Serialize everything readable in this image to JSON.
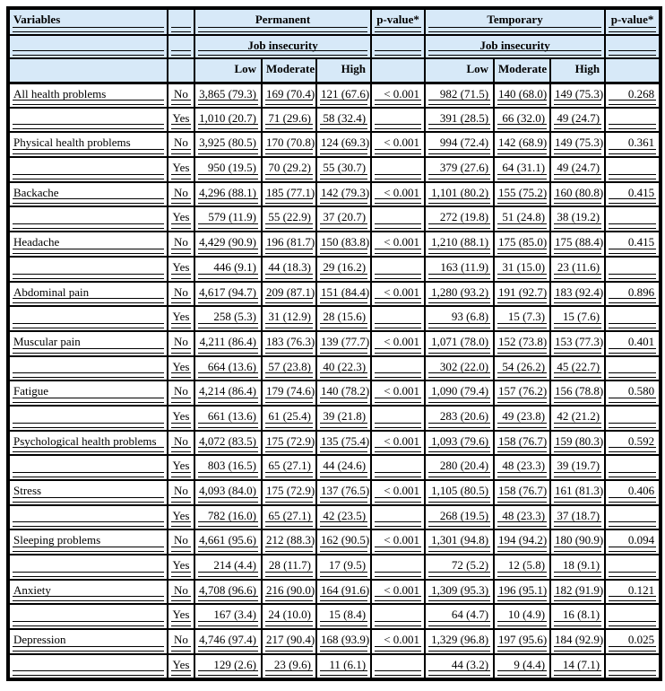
{
  "colors": {
    "header_bg": "#d7e9f8",
    "border": "#000000",
    "page_bg": "#ffffff"
  },
  "header": {
    "variables": "Variables",
    "permanent": "Permanent",
    "temporary": "Temporary",
    "p_value": "p-value*",
    "job_insecurity": "Job insecurity",
    "low": "Low",
    "moderate": "Moderate",
    "high": "High"
  },
  "table": {
    "column_groups": [
      "Variables",
      "",
      "Permanent Job insecurity: Low/Moderate/High",
      "p-value*",
      "Temporary Job insecurity: Low/Moderate/High",
      "p-value*"
    ],
    "rows": [
      {
        "variable": "All health problems",
        "answer": "No",
        "cells": [
          "3,865 (79.3)",
          "169 (70.4)",
          "121 (67.6)",
          "< 0.001",
          "982 (71.5)",
          "140 (68.0)",
          "149 (75.3)",
          "0.268"
        ]
      },
      {
        "variable": "",
        "answer": "Yes",
        "cells": [
          "1,010 (20.7)",
          "71 (29.6)",
          "58 (32.4)",
          "",
          "391 (28.5)",
          "66 (32.0)",
          "49 (24.7)",
          ""
        ]
      },
      {
        "variable": "Physical health problems",
        "answer": "No",
        "cells": [
          "3,925 (80.5)",
          "170 (70.8)",
          "124 (69.3)",
          "< 0.001",
          "994 (72.4)",
          "142 (68.9)",
          "149 (75.3)",
          "0.361"
        ]
      },
      {
        "variable": "",
        "answer": "Yes",
        "cells": [
          "950 (19.5)",
          "70 (29.2)",
          "55 (30.7)",
          "",
          "379 (27.6)",
          "64 (31.1)",
          "49 (24.7)",
          ""
        ]
      },
      {
        "variable": "Backache",
        "answer": "No",
        "cells": [
          "4,296 (88.1)",
          "185 (77.1)",
          "142 (79.3)",
          "< 0.001",
          "1,101 (80.2)",
          "155 (75.2)",
          "160 (80.8)",
          "0.415"
        ]
      },
      {
        "variable": "",
        "answer": "Yes",
        "cells": [
          "579 (11.9)",
          "55 (22.9)",
          "37 (20.7)",
          "",
          "272 (19.8)",
          "51 (24.8)",
          "38 (19.2)",
          ""
        ]
      },
      {
        "variable": "Headache",
        "answer": "No",
        "cells": [
          "4,429 (90.9)",
          "196 (81.7)",
          "150 (83.8)",
          "< 0.001",
          "1,210 (88.1)",
          "175 (85.0)",
          "175 (88.4)",
          "0.415"
        ]
      },
      {
        "variable": "",
        "answer": "Yes",
        "cells": [
          "446 (9.1)",
          "44 (18.3)",
          "29 (16.2)",
          "",
          "163 (11.9)",
          "31 (15.0)",
          "23 (11.6)",
          ""
        ]
      },
      {
        "variable": "Abdominal pain",
        "answer": "No",
        "cells": [
          "4,617 (94.7)",
          "209 (87.1)",
          "151 (84.4)",
          "< 0.001",
          "1,280 (93.2)",
          "191 (92.7)",
          "183 (92.4)",
          "0.896"
        ]
      },
      {
        "variable": "",
        "answer": "Yes",
        "cells": [
          "258 (5.3)",
          "31 (12.9)",
          "28 (15.6)",
          "",
          "93 (6.8)",
          "15 (7.3)",
          "15 (7.6)",
          ""
        ]
      },
      {
        "variable": "Muscular pain",
        "answer": "No",
        "cells": [
          "4,211 (86.4)",
          "183 (76.3)",
          "139 (77.7)",
          "< 0.001",
          "1,071 (78.0)",
          "152 (73.8)",
          "153 (77.3)",
          "0.401"
        ]
      },
      {
        "variable": "",
        "answer": "Yes",
        "cells": [
          "664 (13.6)",
          "57 (23.8)",
          "40 (22.3)",
          "",
          "302 (22.0)",
          "54 (26.2)",
          "45 (22.7)",
          ""
        ]
      },
      {
        "variable": "Fatigue",
        "answer": "No",
        "cells": [
          "4,214 (86.4)",
          "179 (74.6)",
          "140 (78.2)",
          "< 0.001",
          "1,090 (79.4)",
          "157 (76.2)",
          "156 (78.8)",
          "0.580"
        ]
      },
      {
        "variable": "",
        "answer": "Yes",
        "cells": [
          "661 (13.6)",
          "61 (25.4)",
          "39 (21.8)",
          "",
          "283 (20.6)",
          "49 (23.8)",
          "42 (21.2)",
          ""
        ]
      },
      {
        "variable": "Psychological health problems",
        "answer": "No",
        "cells": [
          "4,072 (83.5)",
          "175 (72.9)",
          "135 (75.4)",
          "< 0.001",
          "1,093 (79.6)",
          "158 (76.7)",
          "159 (80.3)",
          "0.592"
        ]
      },
      {
        "variable": "",
        "answer": "Yes",
        "cells": [
          "803 (16.5)",
          "65 (27.1)",
          "44 (24.6)",
          "",
          "280 (20.4)",
          "48 (23.3)",
          "39 (19.7)",
          ""
        ]
      },
      {
        "variable": "Stress",
        "answer": "No",
        "cells": [
          "4,093 (84.0)",
          "175 (72.9)",
          "137 (76.5)",
          "< 0.001",
          "1,105 (80.5)",
          "158 (76.7)",
          "161 (81.3)",
          "0.406"
        ]
      },
      {
        "variable": "",
        "answer": "Yes",
        "cells": [
          "782 (16.0)",
          "65 (27.1)",
          "42 (23.5)",
          "",
          "268 (19.5)",
          "48 (23.3)",
          "37 (18.7)",
          ""
        ]
      },
      {
        "variable": "Sleeping problems",
        "answer": "No",
        "cells": [
          "4,661 (95.6)",
          "212 (88.3)",
          "162 (90.5)",
          "< 0.001",
          "1,301 (94.8)",
          "194 (94.2)",
          "180 (90.9)",
          "0.094"
        ]
      },
      {
        "variable": "",
        "answer": "Yes",
        "cells": [
          "214 (4.4)",
          "28 (11.7)",
          "17 (9.5)",
          "",
          "72 (5.2)",
          "12 (5.8)",
          "18 (9.1)",
          ""
        ]
      },
      {
        "variable": "Anxiety",
        "answer": "No",
        "cells": [
          "4,708 (96.6)",
          "216 (90.0)",
          "164 (91.6)",
          "< 0.001",
          "1,309 (95.3)",
          "196 (95.1)",
          "182 (91.9)",
          "0.121"
        ]
      },
      {
        "variable": "",
        "answer": "Yes",
        "cells": [
          "167 (3.4)",
          "24 (10.0)",
          "15 (8.4)",
          "",
          "64 (4.7)",
          "10 (4.9)",
          "16 (8.1)",
          ""
        ]
      },
      {
        "variable": "Depression",
        "answer": "No",
        "cells": [
          "4,746 (97.4)",
          "217 (90.4)",
          "168 (93.9)",
          "< 0.001",
          "1,329 (96.8)",
          "197 (95.6)",
          "184 (92.9)",
          "0.025"
        ]
      },
      {
        "variable": "",
        "answer": "Yes",
        "cells": [
          "129 (2.6)",
          "23 (9.6)",
          "11 (6.1)",
          "",
          "44 (3.2)",
          "9 (4.4)",
          "14 (7.1)",
          ""
        ]
      }
    ]
  }
}
